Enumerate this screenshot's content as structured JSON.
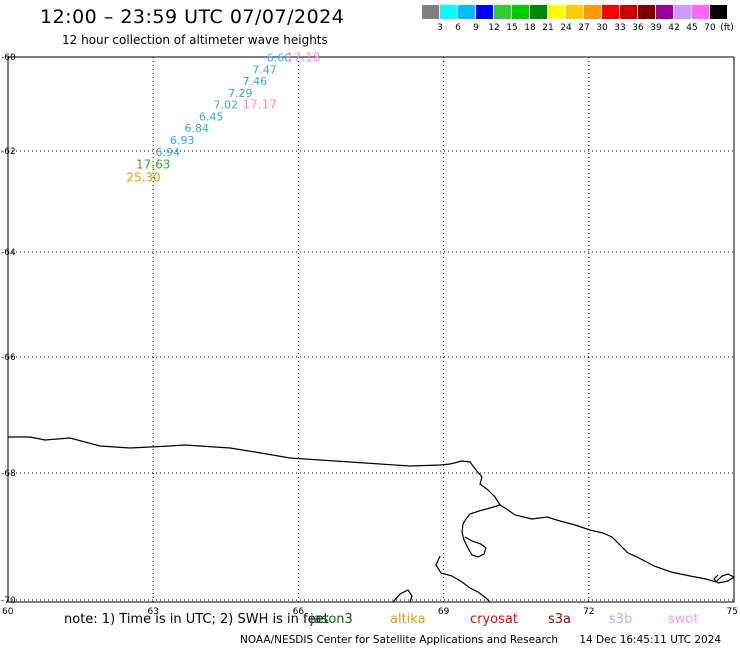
{
  "header": {
    "title": "12:00 – 23:59 UTC 07/07/2024",
    "subtitle": "12 hour collection of altimeter wave heights"
  },
  "legend": {
    "colors": [
      "#808080",
      "#00ffff",
      "#00bfff",
      "#0000ff",
      "#33cc33",
      "#00cc00",
      "#008800",
      "#ffff00",
      "#ffcc00",
      "#ff9900",
      "#ff0000",
      "#cc0000",
      "#800000",
      "#990099",
      "#cc99ff",
      "#ff66ff",
      "#000000"
    ],
    "labels": [
      "3",
      "6",
      "9",
      "12",
      "15",
      "18",
      "21",
      "24",
      "27",
      "30",
      "33",
      "36",
      "39",
      "42",
      "45",
      "70"
    ],
    "unit": "(ft)"
  },
  "axes": {
    "lat_labels": [
      "-60",
      "-62",
      "-64",
      "-66",
      "-68",
      "-70"
    ],
    "lon_labels": [
      "60",
      "63",
      "66",
      "69",
      "72",
      "75"
    ]
  },
  "observations": [
    {
      "text": "6.66",
      "lon": 65.6,
      "lat": -60.1,
      "color": "#33aadd"
    },
    {
      "text": "17.18",
      "lon": 66.1,
      "lat": -60.1,
      "color": "#ff88dd"
    },
    {
      "text": "7.47",
      "lon": 65.3,
      "lat": -60.35,
      "color": "#33aadd"
    },
    {
      "text": "7.46",
      "lon": 65.1,
      "lat": -60.6,
      "color": "#33aadd"
    },
    {
      "text": "7.29",
      "lon": 64.8,
      "lat": -60.85,
      "color": "#33aadd"
    },
    {
      "text": "7.02",
      "lon": 64.5,
      "lat": -61.1,
      "color": "#33aadd"
    },
    {
      "text": "17.17",
      "lon": 65.2,
      "lat": -61.1,
      "color": "#ff88dd"
    },
    {
      "text": "6.45",
      "lon": 64.2,
      "lat": -61.35,
      "color": "#33aadd"
    },
    {
      "text": "6.84",
      "lon": 63.9,
      "lat": -61.6,
      "color": "#33aadd"
    },
    {
      "text": "6.93",
      "lon": 63.6,
      "lat": -61.85,
      "color": "#33aadd"
    },
    {
      "text": "6.94",
      "lon": 63.3,
      "lat": -62.1,
      "color": "#33aadd"
    },
    {
      "text": "17.63",
      "lon": 63.0,
      "lat": -62.35,
      "color": "#33aa33"
    },
    {
      "text": "25.30",
      "lon": 62.8,
      "lat": -62.6,
      "color": "#ee9900"
    }
  ],
  "note": "note: 1) Time is in UTC; 2) SWH is in feet",
  "satellites": [
    {
      "name": "jason3",
      "color": "#006600"
    },
    {
      "name": "altika",
      "color": "#ee9900"
    },
    {
      "name": "cryosat",
      "color": "#ee0000"
    },
    {
      "name": "s3a",
      "color": "#990000"
    },
    {
      "name": "s3b",
      "color": "#bbaaee"
    },
    {
      "name": "swot",
      "color": "#ff99dd"
    }
  ],
  "footer": {
    "source": "NOAA/NESDIS Center for Satellite Applications and Research",
    "timestamp": "14 Dec 16:45:11 UTC 2024"
  }
}
